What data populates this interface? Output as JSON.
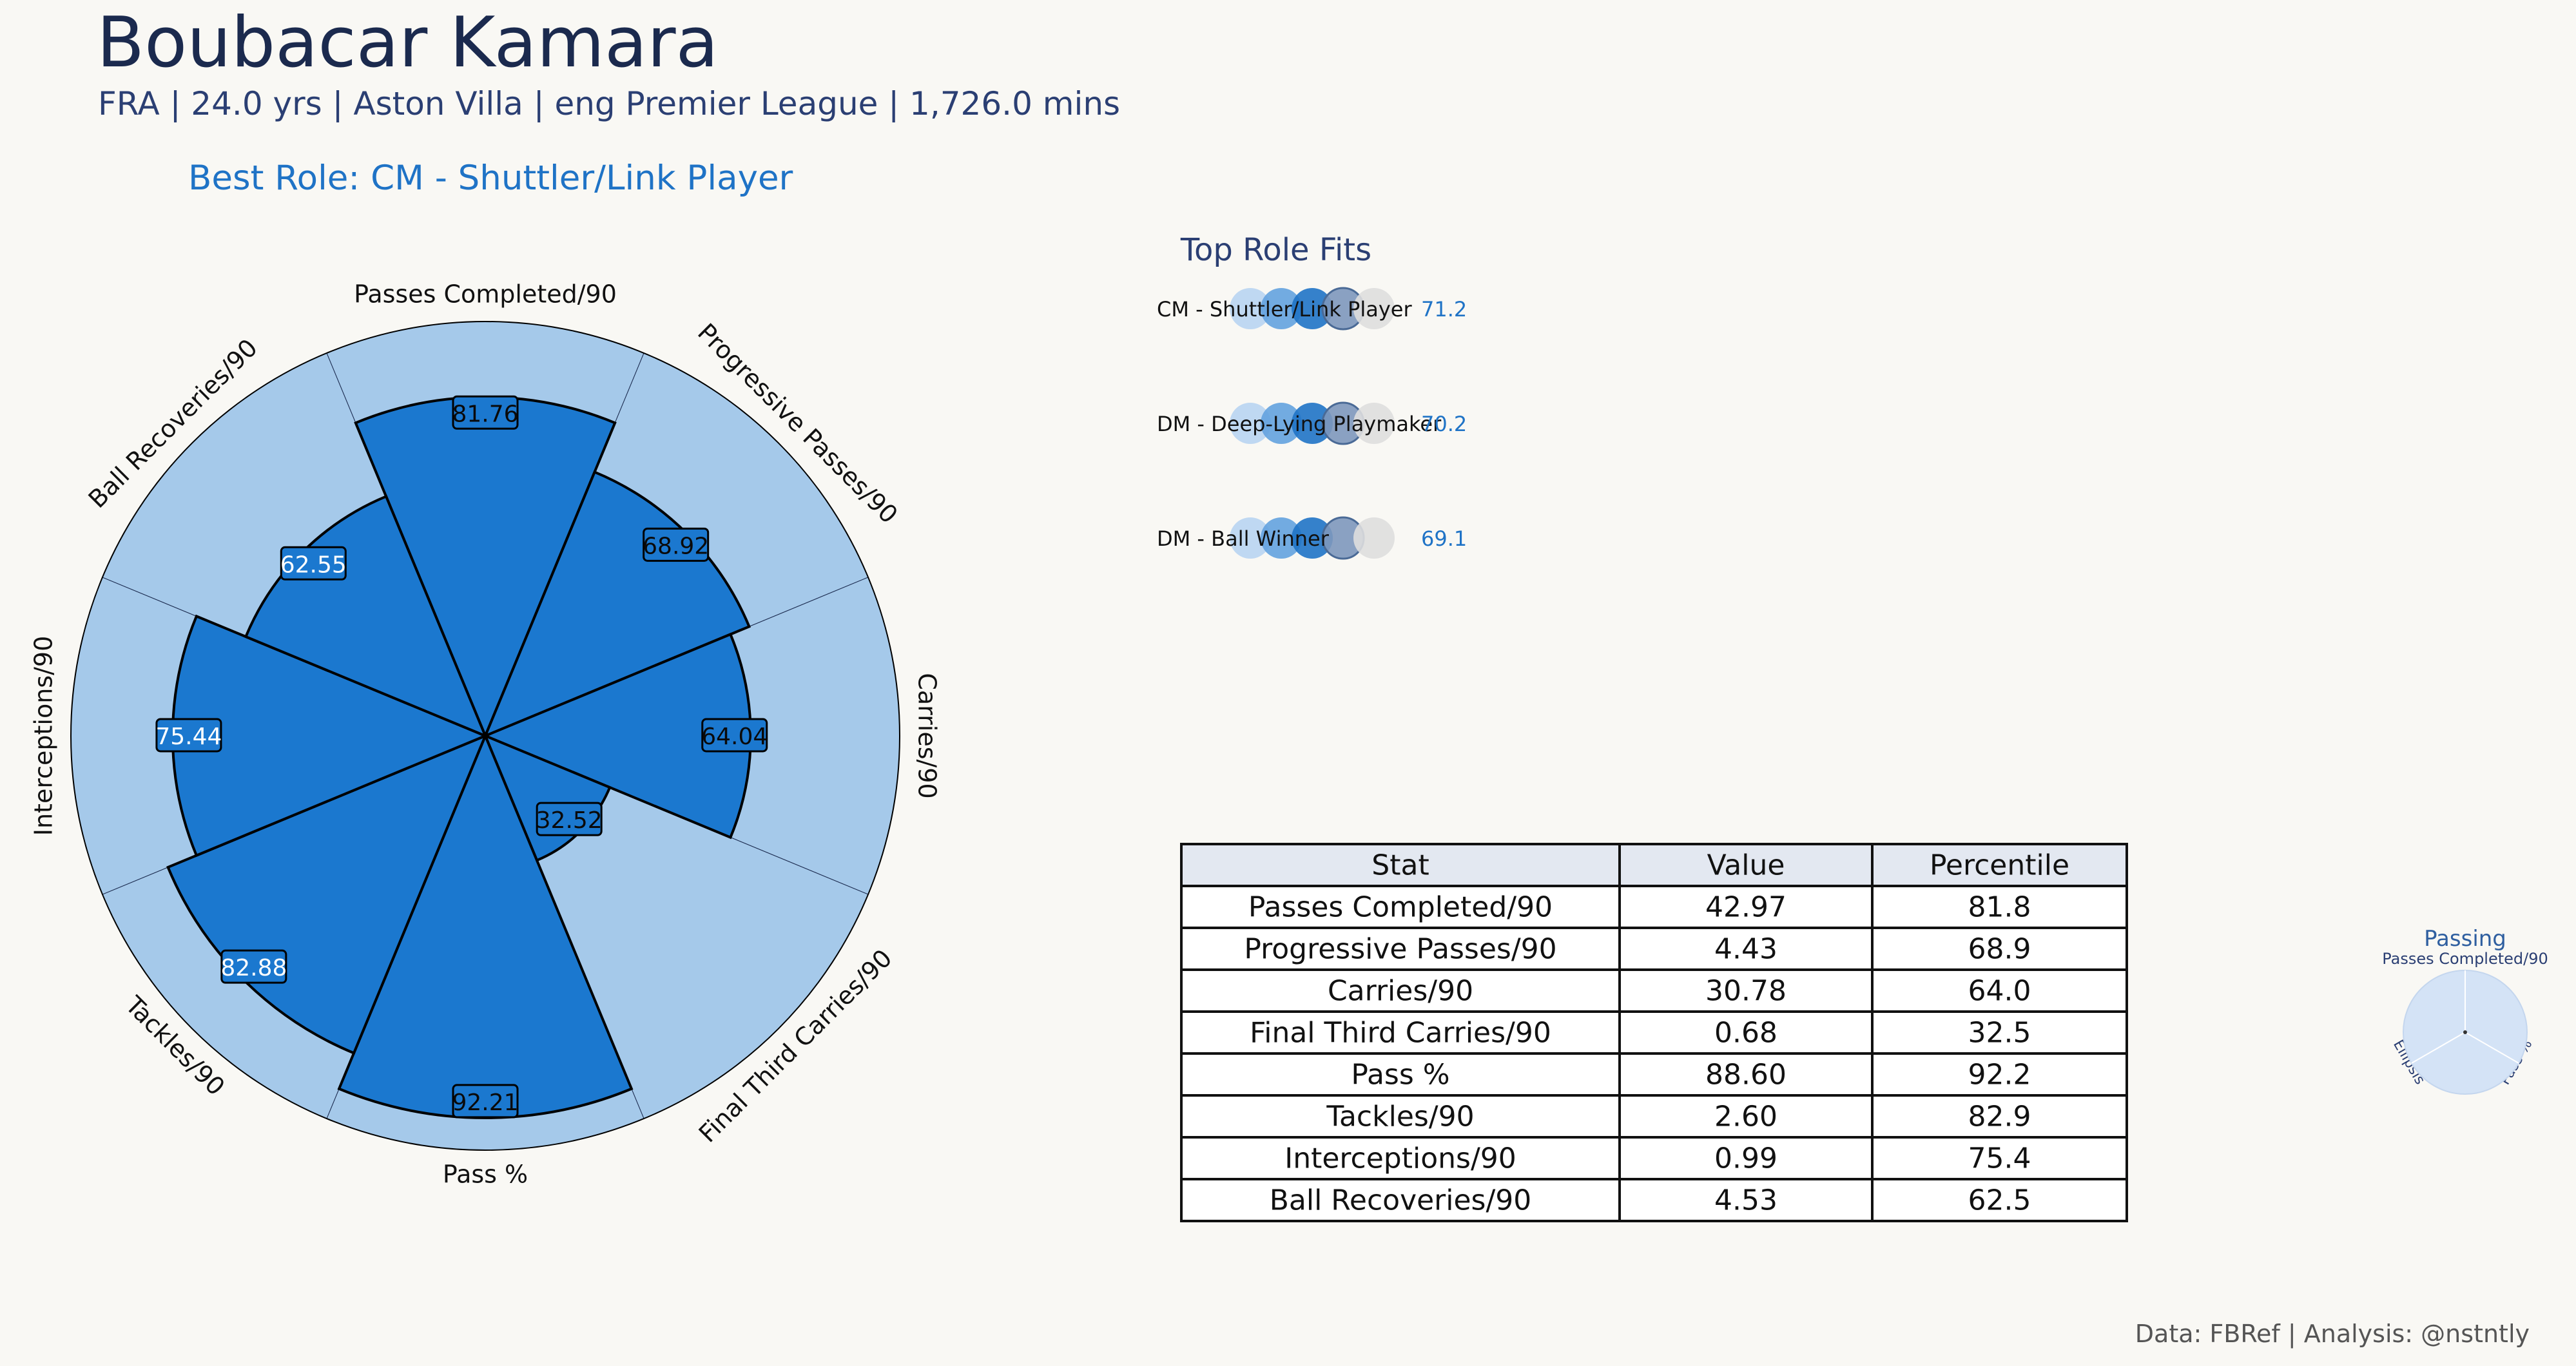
{
  "header": {
    "player_name": "Boubacar Kamara",
    "subtitle": "FRA | 24.0 yrs | Aston Villa | eng Premier League | 1,726.0 mins",
    "best_role": "Best Role: CM - Shuttler/Link Player"
  },
  "colors": {
    "background": "#f9f8f4",
    "title": "#1b2a4e",
    "accent": "#1f73c6",
    "bar_fill": "#1b78cf",
    "bar_background": "#a5c9ea"
  },
  "chart_data": [
    {
      "type": "polar-bar",
      "name": "pizza",
      "categories": [
        "Passes Completed/90",
        "Progressive Passes/90",
        "Carries/90",
        "Final Third Carries/90",
        "Pass %",
        "Tackles/90",
        "Interceptions/90",
        "Ball Recoveries/90"
      ],
      "values": [
        81.76,
        68.92,
        64.04,
        32.52,
        92.21,
        82.88,
        75.44,
        62.55
      ],
      "value_labels": [
        "81.76",
        "68.92",
        "64.04",
        "32.52",
        "92.21",
        "82.88",
        "75.44",
        "62.55"
      ],
      "range": [
        0,
        100
      ]
    },
    {
      "type": "bar",
      "name": "top-role-fits",
      "title": "Top Role Fits",
      "categories": [
        "CM - Shuttler/Link Player",
        "DM - Deep-Lying Playmaker",
        "DM - Ball Winner"
      ],
      "values": [
        71.2,
        70.2,
        69.1
      ],
      "value_labels": [
        "71.2",
        "70.2",
        "69.1"
      ]
    },
    {
      "type": "table",
      "name": "stat-table",
      "columns": [
        "Stat",
        "Value",
        "Percentile"
      ],
      "rows": [
        [
          "Passes Completed/90",
          "42.97",
          "81.8"
        ],
        [
          "Progressive Passes/90",
          "4.43",
          "68.9"
        ],
        [
          "Carries/90",
          "30.78",
          "64.0"
        ],
        [
          "Final Third Carries/90",
          "0.68",
          "32.5"
        ],
        [
          "Pass %",
          "88.60",
          "92.2"
        ],
        [
          "Tackles/90",
          "2.60",
          "82.9"
        ],
        [
          "Interceptions/90",
          "0.99",
          "75.4"
        ],
        [
          "Ball Recoveries/90",
          "4.53",
          "62.5"
        ]
      ]
    },
    {
      "type": "radar",
      "name": "mini-radar",
      "title": "Passing",
      "categories": [
        "Passes Completed/90",
        "Pass %",
        "Ellipsis"
      ]
    }
  ],
  "footer": {
    "credit": "Data: FBRef | Analysis: @nstntly"
  }
}
